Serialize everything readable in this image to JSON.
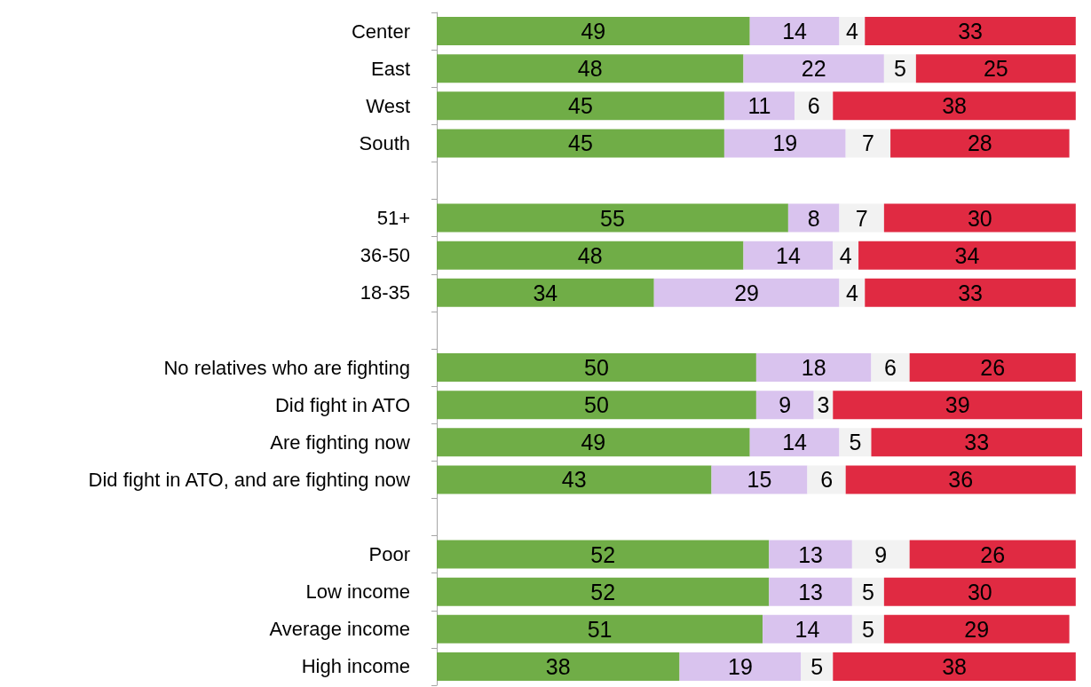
{
  "chart_data": {
    "type": "bar",
    "orientation": "horizontal",
    "stacked": true,
    "data_labels": true,
    "tick_labels": "y",
    "grid": false,
    "categories": [
      "Center",
      "East",
      "West",
      "South",
      null,
      "51+",
      "36-50",
      "18-35",
      null,
      "No relatives who are fighting",
      "Did fight in ATO",
      "Are fighting now",
      "Did fight in ATO, and are fighting now",
      null,
      "Poor",
      "Low income",
      "Average income",
      "High income"
    ],
    "xlim": [
      0,
      101
    ],
    "series": [
      {
        "color": "#70ad47",
        "values": [
          49,
          48,
          45,
          45,
          null,
          55,
          48,
          34,
          null,
          50,
          50,
          49,
          43,
          null,
          52,
          52,
          51,
          38
        ]
      },
      {
        "color": "#d9c3ee",
        "values": [
          14,
          22,
          11,
          19,
          null,
          8,
          14,
          29,
          null,
          18,
          9,
          14,
          15,
          null,
          13,
          13,
          14,
          19
        ]
      },
      {
        "color": "#f2f2f2",
        "values": [
          4,
          5,
          6,
          7,
          null,
          7,
          4,
          4,
          null,
          6,
          3,
          5,
          6,
          null,
          9,
          5,
          5,
          5
        ]
      },
      {
        "color": "#e02a42",
        "values": [
          33,
          25,
          38,
          28,
          null,
          30,
          34,
          33,
          null,
          26,
          39,
          33,
          36,
          null,
          26,
          30,
          29,
          38
        ]
      }
    ]
  }
}
